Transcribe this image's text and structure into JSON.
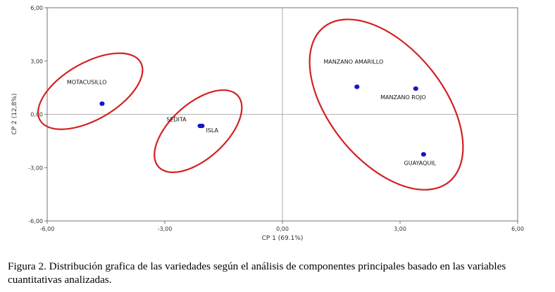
{
  "chart_data": {
    "type": "scatter",
    "title": "",
    "xlabel": "CP 1 (69.1%)",
    "ylabel": "CP 2 (12,8%)",
    "xlim": [
      -6,
      6
    ],
    "ylim": [
      -6,
      6
    ],
    "x_ticks": [
      -6,
      -3,
      0,
      3,
      6
    ],
    "y_ticks": [
      -6,
      -3,
      0,
      3,
      6
    ],
    "x_tick_labels": [
      "-6,00",
      "-3,00",
      "0,00",
      "3,00",
      "6,00"
    ],
    "y_tick_labels": [
      "-6,00",
      "-3,00",
      "0,00",
      "3,00",
      "6,00"
    ],
    "grid": false,
    "reference_lines": [
      0,
      0
    ],
    "marker_color": "#1515c8",
    "cluster_color": "#d42020",
    "points": [
      {
        "label": "MOTACUSILLO",
        "x": -4.6,
        "y": 0.6
      },
      {
        "label": "SEDITA",
        "x": -2.1,
        "y": -0.65
      },
      {
        "label": "ISLA",
        "x": -2.05,
        "y": -0.65
      },
      {
        "label": "MANZANO AMARILLO",
        "x": 1.9,
        "y": 1.55
      },
      {
        "label": "MANZANO ROJO",
        "x": 3.4,
        "y": 1.45
      },
      {
        "label": "GUAYAQUIL",
        "x": 3.6,
        "y": -2.25
      }
    ],
    "clusters": [
      {
        "members": [
          "MOTACUSILLO"
        ],
        "cx": -4.9,
        "cy": 1.3,
        "rx": 1.48,
        "ry": 1.6,
        "angle": -30
      },
      {
        "members": [
          "SEDITA",
          "ISLA"
        ],
        "cx": -2.15,
        "cy": -0.95,
        "rx": 1.36,
        "ry": 1.55,
        "angle": -42
      },
      {
        "members": [
          "MANZANO AMARILLO",
          "MANZANO ROJO",
          "GUAYAQUIL"
        ],
        "cx": 2.65,
        "cy": 0.55,
        "rx": 1.45,
        "ry": 5.6,
        "angle": -39
      }
    ]
  },
  "caption": "Figura 2. Distribución grafica de las variedades según el análisis de componentes principales basado en las variables cuantitativas analizadas."
}
